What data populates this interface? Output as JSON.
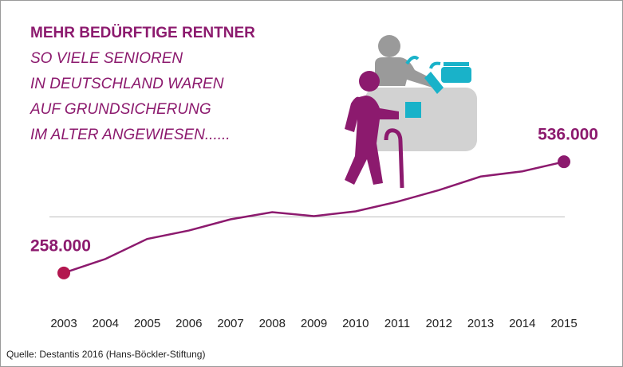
{
  "chart_data": {
    "type": "line",
    "title": "MEHR BEDÜRFTIGE RENTNER",
    "subtitle": [
      "SO VIELE SENIOREN",
      "IN DEUTSCHLAND WAREN",
      "AUF GRUNDSICHERUNG",
      "IM ALTER ANGEWIESEN......"
    ],
    "categories": [
      "2003",
      "2004",
      "2005",
      "2006",
      "2007",
      "2008",
      "2009",
      "2010",
      "2011",
      "2012",
      "2013",
      "2014",
      "2015"
    ],
    "values": [
      258000,
      293000,
      343000,
      364000,
      392000,
      410000,
      400000,
      412000,
      436000,
      465000,
      499000,
      512000,
      536000
    ],
    "value_labels": [
      "258.000",
      null,
      null,
      null,
      null,
      null,
      null,
      null,
      null,
      null,
      null,
      null,
      "536.000"
    ],
    "color": "#8c1a6e",
    "ylim": [
      200000,
      600000
    ],
    "source": "Quelle: Destantis 2016 (Hans-Böckler-Stiftung)"
  }
}
